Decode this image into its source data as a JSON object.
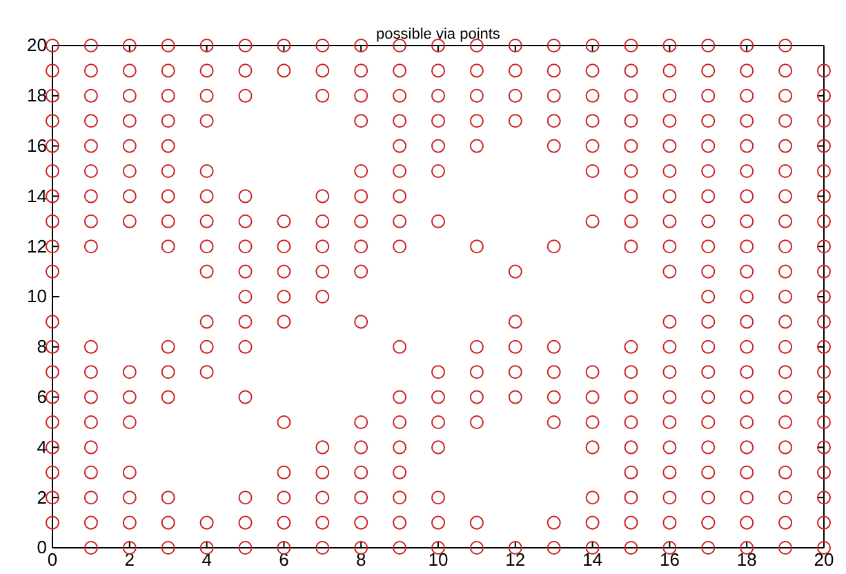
{
  "chart_data": {
    "type": "scatter",
    "title": "possible via points",
    "marker": "circle",
    "xlim": [
      0,
      20
    ],
    "ylim": [
      0,
      20
    ],
    "xticks": [
      0,
      2,
      4,
      6,
      8,
      10,
      12,
      14,
      16,
      18,
      20
    ],
    "yticks": [
      0,
      2,
      4,
      6,
      8,
      10,
      12,
      14,
      16,
      18,
      20
    ],
    "series": [
      {
        "color": "#cc2222",
        "x": [
          0,
          1,
          2,
          3,
          4,
          5,
          6,
          7,
          8,
          9,
          10,
          11,
          12,
          13,
          14,
          15,
          16,
          17,
          18,
          19
        ],
        "values": [
          20,
          20,
          20,
          20,
          20,
          20,
          20,
          20,
          20,
          20,
          20,
          20,
          20,
          20,
          20,
          20,
          20,
          20,
          20,
          20
        ]
      },
      {
        "color": "#cc2222",
        "x": [
          0,
          1,
          2,
          3,
          4,
          5,
          6,
          7,
          8,
          9,
          10,
          11,
          12,
          13,
          14,
          15,
          16,
          17,
          18,
          19,
          20
        ],
        "values": [
          19,
          19,
          19,
          19,
          19,
          19,
          19,
          19,
          19,
          19,
          19,
          19,
          19,
          19,
          19,
          19,
          19,
          19,
          19,
          19,
          19
        ]
      },
      {
        "color": "#cc2222",
        "x": [
          0,
          1,
          2,
          3,
          4,
          5,
          7,
          8,
          9,
          10,
          11,
          12,
          13,
          14,
          15,
          16,
          17,
          18,
          19,
          20
        ],
        "values": [
          18,
          18,
          18,
          18,
          18,
          18,
          18,
          18,
          18,
          18,
          18,
          18,
          18,
          18,
          18,
          18,
          18,
          18,
          18,
          18
        ]
      },
      {
        "color": "#cc2222",
        "x": [
          0,
          1,
          2,
          3,
          4,
          8,
          9,
          10,
          11,
          12,
          13,
          14,
          15,
          16,
          17,
          18,
          19,
          20
        ],
        "values": [
          17,
          17,
          17,
          17,
          17,
          17,
          17,
          17,
          17,
          17,
          17,
          17,
          17,
          17,
          17,
          17,
          17,
          17
        ]
      },
      {
        "color": "#cc2222",
        "x": [
          0,
          1,
          2,
          3,
          9,
          10,
          11,
          13,
          14,
          15,
          16,
          17,
          18,
          19,
          20
        ],
        "values": [
          16,
          16,
          16,
          16,
          16,
          16,
          16,
          16,
          16,
          16,
          16,
          16,
          16,
          16,
          16
        ]
      },
      {
        "color": "#cc2222",
        "x": [
          0,
          1,
          2,
          3,
          4,
          8,
          9,
          10,
          14,
          15,
          16,
          17,
          18,
          19,
          20
        ],
        "values": [
          15,
          15,
          15,
          15,
          15,
          15,
          15,
          15,
          15,
          15,
          15,
          15,
          15,
          15,
          15
        ]
      },
      {
        "color": "#cc2222",
        "x": [
          0,
          1,
          2,
          3,
          4,
          5,
          7,
          8,
          9,
          15,
          16,
          17,
          18,
          19,
          20
        ],
        "values": [
          14,
          14,
          14,
          14,
          14,
          14,
          14,
          14,
          14,
          14,
          14,
          14,
          14,
          14,
          14
        ]
      },
      {
        "color": "#cc2222",
        "x": [
          0,
          1,
          2,
          3,
          4,
          5,
          6,
          7,
          8,
          9,
          10,
          14,
          15,
          16,
          17,
          18,
          19,
          20
        ],
        "values": [
          13,
          13,
          13,
          13,
          13,
          13,
          13,
          13,
          13,
          13,
          13,
          13,
          13,
          13,
          13,
          13,
          13,
          13
        ]
      },
      {
        "color": "#cc2222",
        "x": [
          0,
          1,
          3,
          4,
          5,
          6,
          7,
          8,
          9,
          11,
          13,
          15,
          16,
          17,
          18,
          19,
          20
        ],
        "values": [
          12,
          12,
          12,
          12,
          12,
          12,
          12,
          12,
          12,
          12,
          12,
          12,
          12,
          12,
          12,
          12,
          12
        ]
      },
      {
        "color": "#cc2222",
        "x": [
          0,
          4,
          5,
          6,
          7,
          8,
          12,
          16,
          17,
          18,
          19,
          20
        ],
        "values": [
          11,
          11,
          11,
          11,
          11,
          11,
          11,
          11,
          11,
          11,
          11,
          11
        ]
      },
      {
        "color": "#cc2222",
        "x": [
          5,
          6,
          7,
          17,
          18,
          19,
          20
        ],
        "values": [
          10,
          10,
          10,
          10,
          10,
          10,
          10
        ]
      },
      {
        "color": "#cc2222",
        "x": [
          0,
          4,
          5,
          6,
          8,
          12,
          16,
          17,
          18,
          19,
          20
        ],
        "values": [
          9,
          9,
          9,
          9,
          9,
          9,
          9,
          9,
          9,
          9,
          9
        ]
      },
      {
        "color": "#cc2222",
        "x": [
          0,
          1,
          3,
          4,
          5,
          9,
          11,
          12,
          13,
          15,
          16,
          17,
          18,
          19,
          20
        ],
        "values": [
          8,
          8,
          8,
          8,
          8,
          8,
          8,
          8,
          8,
          8,
          8,
          8,
          8,
          8,
          8
        ]
      },
      {
        "color": "#cc2222",
        "x": [
          0,
          1,
          2,
          3,
          4,
          10,
          11,
          12,
          13,
          14,
          15,
          16,
          17,
          18,
          19,
          20
        ],
        "values": [
          7,
          7,
          7,
          7,
          7,
          7,
          7,
          7,
          7,
          7,
          7,
          7,
          7,
          7,
          7,
          7
        ]
      },
      {
        "color": "#cc2222",
        "x": [
          0,
          1,
          2,
          3,
          5,
          9,
          10,
          11,
          12,
          13,
          14,
          15,
          16,
          17,
          18,
          19,
          20
        ],
        "values": [
          6,
          6,
          6,
          6,
          6,
          6,
          6,
          6,
          6,
          6,
          6,
          6,
          6,
          6,
          6,
          6,
          6
        ]
      },
      {
        "color": "#cc2222",
        "x": [
          0,
          1,
          2,
          6,
          8,
          9,
          10,
          11,
          13,
          14,
          15,
          16,
          17,
          18,
          19,
          20
        ],
        "values": [
          5,
          5,
          5,
          5,
          5,
          5,
          5,
          5,
          5,
          5,
          5,
          5,
          5,
          5,
          5,
          5
        ]
      },
      {
        "color": "#cc2222",
        "x": [
          0,
          1,
          7,
          8,
          9,
          10,
          14,
          15,
          16,
          17,
          18,
          19,
          20
        ],
        "values": [
          4,
          4,
          4,
          4,
          4,
          4,
          4,
          4,
          4,
          4,
          4,
          4,
          4
        ]
      },
      {
        "color": "#cc2222",
        "x": [
          0,
          1,
          2,
          6,
          7,
          8,
          9,
          15,
          16,
          17,
          18,
          19,
          20
        ],
        "values": [
          3,
          3,
          3,
          3,
          3,
          3,
          3,
          3,
          3,
          3,
          3,
          3,
          3
        ]
      },
      {
        "color": "#cc2222",
        "x": [
          0,
          1,
          2,
          3,
          5,
          6,
          7,
          8,
          9,
          10,
          14,
          15,
          16,
          17,
          18,
          19,
          20
        ],
        "values": [
          2,
          2,
          2,
          2,
          2,
          2,
          2,
          2,
          2,
          2,
          2,
          2,
          2,
          2,
          2,
          2,
          2
        ]
      },
      {
        "color": "#cc2222",
        "x": [
          0,
          1,
          2,
          3,
          4,
          5,
          6,
          7,
          8,
          9,
          10,
          11,
          13,
          14,
          15,
          16,
          17,
          18,
          19,
          20
        ],
        "values": [
          1,
          1,
          1,
          1,
          1,
          1,
          1,
          1,
          1,
          1,
          1,
          1,
          1,
          1,
          1,
          1,
          1,
          1,
          1,
          1
        ]
      },
      {
        "color": "#cc2222",
        "x": [
          1,
          2,
          3,
          4,
          5,
          6,
          7,
          8,
          9,
          10,
          11,
          12,
          13,
          14,
          15,
          16,
          17,
          18,
          19,
          20
        ],
        "values": [
          0,
          0,
          0,
          0,
          0,
          0,
          0,
          0,
          0,
          0,
          0,
          0,
          0,
          0,
          0,
          0,
          0,
          0,
          0,
          0
        ]
      }
    ]
  }
}
